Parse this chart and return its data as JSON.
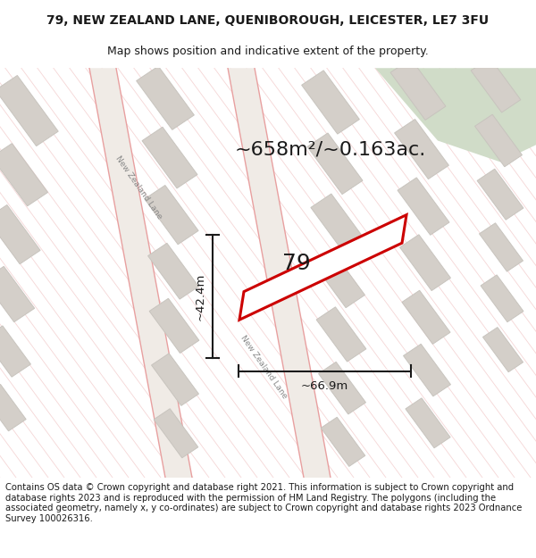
{
  "title_line1": "79, NEW ZEALAND LANE, QUENIBOROUGH, LEICESTER, LE7 3FU",
  "title_line2": "Map shows position and indicative extent of the property.",
  "area_label": "~658m²/~0.163ac.",
  "plot_number": "79",
  "dim_height": "~42.4m",
  "dim_width": "~66.9m",
  "road_label": "New Zealand Lane",
  "footer_text": "Contains OS data © Crown copyright and database right 2021. This information is subject to Crown copyright and database rights 2023 and is reproduced with the permission of HM Land Registry. The polygons (including the associated geometry, namely x, y co-ordinates) are subject to Crown copyright and database rights 2023 Ordnance Survey 100026316.",
  "map_bg": "#f9f7f5",
  "building_fill": "#d4cfc9",
  "building_stroke": "#c8c4be",
  "road_line_color": "#e8a0a0",
  "road_fill": "#f0ebe6",
  "hatch_color": "#f0c0c0",
  "plot_outline_color": "#cc0000",
  "plot_fill_color": "#ffffff",
  "green_area_color": "#d0dcc8",
  "dim_line_color": "#1a1a1a",
  "text_color": "#1a1a1a",
  "road_text_color": "#888888",
  "title_fontsize": 10,
  "subtitle_fontsize": 9,
  "footer_fontsize": 7.2,
  "area_fontsize": 16,
  "plot_num_fontsize": 18,
  "dim_fontsize": 9.5,
  "road_fontsize": 6.5
}
